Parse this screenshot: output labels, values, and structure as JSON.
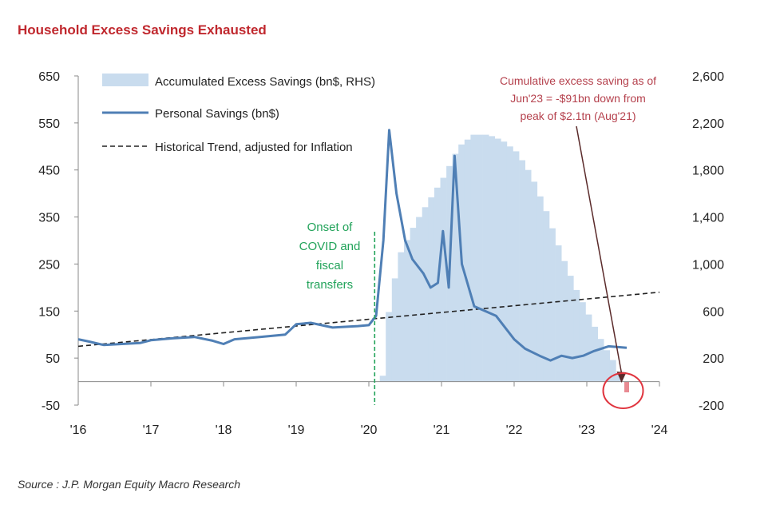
{
  "title": "Household Excess Savings Exhausted",
  "source": "Source : J.P. Morgan Equity Macro Research",
  "colors": {
    "title": "#c0282e",
    "area": "#c9dcee",
    "line": "#4f7fb5",
    "trend": "#222222",
    "covid_marker": "#22a35a",
    "annotation": "#b5414d",
    "circle": "#e0353f"
  },
  "chart_data": {
    "type": "line",
    "title": "Household Excess Savings Exhausted",
    "x_tick_labels": [
      "'16",
      "'17",
      "'18",
      "'19",
      "'20",
      "'21",
      "'22",
      "'23",
      "'24"
    ],
    "y_left": {
      "ticks": [
        650,
        550,
        450,
        350,
        250,
        150,
        50,
        -50
      ],
      "tick_labels": [
        "650",
        "550",
        "450",
        "350",
        "250",
        "150",
        "50",
        "-50"
      ],
      "range": [
        -50,
        650
      ]
    },
    "y_right": {
      "ticks": [
        2600,
        2200,
        1800,
        1400,
        1000,
        600,
        200,
        -200
      ],
      "tick_labels": [
        "2,600",
        "2,200",
        "1,800",
        "1,400",
        "1,000",
        "600",
        "200",
        "-200"
      ],
      "range": [
        -200,
        2600
      ]
    },
    "legend": {
      "placement": "top-left",
      "entries": [
        {
          "key": "area",
          "label": "Accumulated Excess Savings (bn$, RHS)"
        },
        {
          "key": "line",
          "label": "Personal Savings (bn$)"
        },
        {
          "key": "trend",
          "label": "Historical Trend, adjusted for Inflation"
        }
      ]
    },
    "series": [
      {
        "name": "Personal Savings (bn$)",
        "axis": "left",
        "points": [
          [
            2016.0,
            90
          ],
          [
            2016.15,
            85
          ],
          [
            2016.35,
            78
          ],
          [
            2016.6,
            80
          ],
          [
            2016.85,
            82
          ],
          [
            2017.0,
            88
          ],
          [
            2017.3,
            92
          ],
          [
            2017.6,
            95
          ],
          [
            2017.85,
            87
          ],
          [
            2018.0,
            80
          ],
          [
            2018.15,
            90
          ],
          [
            2018.5,
            95
          ],
          [
            2018.85,
            100
          ],
          [
            2019.0,
            122
          ],
          [
            2019.2,
            125
          ],
          [
            2019.5,
            115
          ],
          [
            2019.85,
            118
          ],
          [
            2020.0,
            120
          ],
          [
            2020.1,
            140
          ],
          [
            2020.2,
            300
          ],
          [
            2020.28,
            535
          ],
          [
            2020.38,
            400
          ],
          [
            2020.5,
            300
          ],
          [
            2020.6,
            260
          ],
          [
            2020.75,
            230
          ],
          [
            2020.85,
            200
          ],
          [
            2020.95,
            210
          ],
          [
            2021.02,
            320
          ],
          [
            2021.1,
            200
          ],
          [
            2021.18,
            480
          ],
          [
            2021.28,
            250
          ],
          [
            2021.45,
            160
          ],
          [
            2021.6,
            150
          ],
          [
            2021.75,
            140
          ],
          [
            2021.9,
            110
          ],
          [
            2022.0,
            90
          ],
          [
            2022.15,
            70
          ],
          [
            2022.35,
            55
          ],
          [
            2022.5,
            45
          ],
          [
            2022.65,
            55
          ],
          [
            2022.8,
            50
          ],
          [
            2022.95,
            55
          ],
          [
            2023.1,
            65
          ],
          [
            2023.3,
            75
          ],
          [
            2023.55,
            72
          ]
        ]
      },
      {
        "name": "Historical Trend, adjusted for Inflation",
        "axis": "left",
        "style": "dashed",
        "points": [
          [
            2016.0,
            75
          ],
          [
            2024.0,
            190
          ]
        ]
      },
      {
        "name": "Accumulated Excess Savings (bn$, RHS)",
        "axis": "right",
        "style": "area",
        "points": [
          [
            2020.15,
            50
          ],
          [
            2020.25,
            700
          ],
          [
            2020.4,
            1100
          ],
          [
            2020.6,
            1350
          ],
          [
            2020.85,
            1600
          ],
          [
            2021.0,
            1750
          ],
          [
            2021.2,
            2000
          ],
          [
            2021.4,
            2100
          ],
          [
            2021.6,
            2100
          ],
          [
            2021.8,
            2050
          ],
          [
            2022.0,
            1950
          ],
          [
            2022.2,
            1750
          ],
          [
            2022.4,
            1450
          ],
          [
            2022.6,
            1100
          ],
          [
            2022.8,
            800
          ],
          [
            2023.0,
            550
          ],
          [
            2023.2,
            300
          ],
          [
            2023.35,
            150
          ],
          [
            2023.45,
            0
          ],
          [
            2023.55,
            -91
          ]
        ]
      }
    ],
    "annotations": [
      {
        "key": "covid",
        "x": 2020.08,
        "lines": [
          "Onset of",
          "COVID and",
          "fiscal",
          "transfers"
        ]
      },
      {
        "key": "excess",
        "x": 2023.5,
        "y_right": -91,
        "lines": [
          "Cumulative excess saving as of",
          "Jun'23 = -$91bn down from",
          "peak of $2.1tn (Aug'21)"
        ]
      }
    ],
    "grid": false
  }
}
